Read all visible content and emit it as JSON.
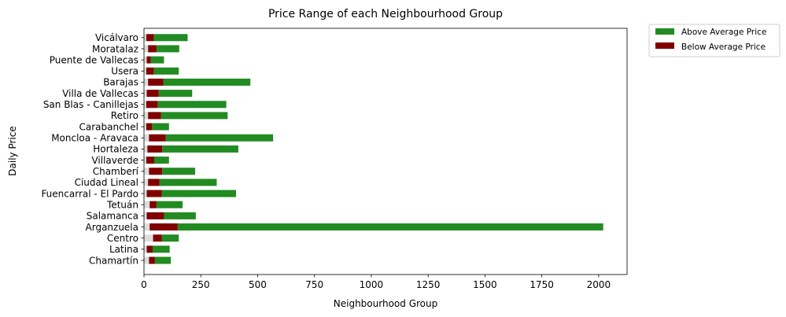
{
  "chart_data": {
    "type": "bar",
    "orientation": "horizontal",
    "stacked": false,
    "title": "Price Range of each Neighbourhood Group",
    "xlabel": "Neighbourhood Group",
    "ylabel": "Daily Price",
    "xlim": [
      0,
      2125
    ],
    "xticks": [
      0,
      250,
      500,
      750,
      1000,
      1250,
      1500,
      1750,
      2000
    ],
    "grid": false,
    "legend_position": "outside-top-right",
    "categories": [
      "Chamartín",
      "Latina",
      "Centro",
      "Arganzuela",
      "Salamanca",
      "Tetuán",
      "Fuencarral - El Pardo",
      "Ciudad Lineal",
      "Chamberí",
      "Villaverde",
      "Hortaleza",
      "Moncloa - Aravaca",
      "Carabanchel",
      "Retiro",
      "San Blas - Canillejas",
      "Villa de Vallecas",
      "Barajas",
      "Usera",
      "Puente de Vallecas",
      "Moratalaz",
      "Vicálvaro"
    ],
    "series": [
      {
        "name": "Above Average Price",
        "color": "#228b22",
        "ranges": [
          [
            48,
            118
          ],
          [
            38,
            113
          ],
          [
            78,
            153
          ],
          [
            148,
            2020
          ],
          [
            88,
            228
          ],
          [
            55,
            170
          ],
          [
            78,
            405
          ],
          [
            68,
            320
          ],
          [
            80,
            225
          ],
          [
            45,
            110
          ],
          [
            80,
            415
          ],
          [
            95,
            568
          ],
          [
            35,
            110
          ],
          [
            75,
            368
          ],
          [
            60,
            362
          ],
          [
            65,
            212
          ],
          [
            85,
            468
          ],
          [
            43,
            153
          ],
          [
            30,
            88
          ],
          [
            55,
            155
          ],
          [
            43,
            192
          ]
        ]
      },
      {
        "name": "Below Average Price",
        "color": "#800000",
        "ranges": [
          [
            22,
            48
          ],
          [
            12,
            38
          ],
          [
            40,
            78
          ],
          [
            25,
            148
          ],
          [
            12,
            88
          ],
          [
            25,
            55
          ],
          [
            12,
            78
          ],
          [
            18,
            68
          ],
          [
            22,
            80
          ],
          [
            10,
            45
          ],
          [
            15,
            80
          ],
          [
            22,
            95
          ],
          [
            10,
            35
          ],
          [
            18,
            75
          ],
          [
            10,
            60
          ],
          [
            12,
            65
          ],
          [
            18,
            85
          ],
          [
            10,
            43
          ],
          [
            12,
            30
          ],
          [
            18,
            55
          ],
          [
            10,
            43
          ]
        ]
      },
      {
        "name": "",
        "color": "#dddddd",
        "ranges": [
          [
            0,
            22
          ],
          [
            0,
            12
          ],
          [
            0,
            40
          ],
          [
            0,
            25
          ],
          [
            0,
            12
          ],
          [
            0,
            25
          ],
          [
            0,
            12
          ],
          [
            0,
            18
          ],
          [
            0,
            22
          ],
          [
            0,
            10
          ],
          [
            0,
            15
          ],
          [
            0,
            22
          ],
          [
            0,
            10
          ],
          [
            0,
            18
          ],
          [
            0,
            10
          ],
          [
            0,
            12
          ],
          [
            0,
            18
          ],
          [
            0,
            10
          ],
          [
            0,
            12
          ],
          [
            0,
            18
          ],
          [
            0,
            10
          ]
        ]
      }
    ]
  }
}
